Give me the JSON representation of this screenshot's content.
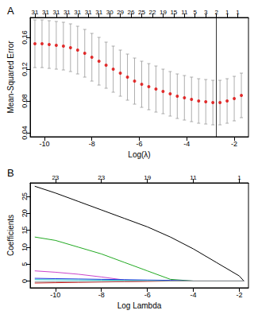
{
  "chart_data": [
    {
      "type": "scatter",
      "title": "A",
      "xlabel": "Log(λ)",
      "ylabel": "Mean-Squared Error",
      "color": "#e00000",
      "x": [
        -10.4,
        -10.1,
        -9.8,
        -9.5,
        -9.2,
        -8.9,
        -8.6,
        -8.3,
        -8.0,
        -7.7,
        -7.4,
        -7.1,
        -6.8,
        -6.5,
        -6.2,
        -5.9,
        -5.6,
        -5.3,
        -5.0,
        -4.7,
        -4.4,
        -4.1,
        -3.8,
        -3.5,
        -3.2,
        -2.9,
        -2.6,
        -2.3,
        -2.0,
        -1.7
      ],
      "values": [
        0.152,
        0.152,
        0.151,
        0.15,
        0.149,
        0.147,
        0.144,
        0.14,
        0.135,
        0.13,
        0.125,
        0.12,
        0.115,
        0.11,
        0.105,
        0.101,
        0.098,
        0.095,
        0.092,
        0.089,
        0.086,
        0.084,
        0.082,
        0.08,
        0.079,
        0.078,
        0.078,
        0.08,
        0.083,
        0.087
      ],
      "error": [
        0.03,
        0.03,
        0.03,
        0.03,
        0.03,
        0.03,
        0.03,
        0.03,
        0.03,
        0.03,
        0.029,
        0.029,
        0.029,
        0.029,
        0.029,
        0.029,
        0.029,
        0.029,
        0.028,
        0.028,
        0.028,
        0.028,
        0.028,
        0.028,
        0.028,
        0.028,
        0.028,
        0.028,
        0.028,
        0.028
      ],
      "xlim": [
        -10.6,
        -1.4
      ],
      "ylim": [
        0.035,
        0.185
      ],
      "xticks": [
        -10,
        -8,
        -6,
        -4,
        -2
      ],
      "yticks": [
        0.04,
        0.08,
        0.12,
        0.16
      ],
      "top_ticks": [
        {
          "value": -10.4,
          "label": "31"
        },
        {
          "value": -9.95,
          "label": "31"
        },
        {
          "value": -9.5,
          "label": "31"
        },
        {
          "value": -9.05,
          "label": "31"
        },
        {
          "value": -8.6,
          "label": "31"
        },
        {
          "value": -8.15,
          "label": "31"
        },
        {
          "value": -7.7,
          "label": "31"
        },
        {
          "value": -7.25,
          "label": "30"
        },
        {
          "value": -6.8,
          "label": "29"
        },
        {
          "value": -6.35,
          "label": "26"
        },
        {
          "value": -5.9,
          "label": "25"
        },
        {
          "value": -5.45,
          "label": "22"
        },
        {
          "value": -5.0,
          "label": "19"
        },
        {
          "value": -4.55,
          "label": "15"
        },
        {
          "value": -4.1,
          "label": "11"
        },
        {
          "value": -3.65,
          "label": "5"
        },
        {
          "value": -3.2,
          "label": "3"
        },
        {
          "value": -2.75,
          "label": "2"
        },
        {
          "value": -2.3,
          "label": "1"
        },
        {
          "value": -1.85,
          "label": "1"
        }
      ],
      "vlines": [
        -2.77
      ]
    },
    {
      "type": "line",
      "title": "B",
      "xlabel": "Log Lambda",
      "ylabel": "Coefficients",
      "x": [
        -10.9,
        -10,
        -9,
        -8,
        -7,
        -6,
        -5,
        -4,
        -3,
        -2,
        -1.8
      ],
      "series": [
        {
          "color": "#000000",
          "values": [
            28,
            26,
            23.5,
            21,
            18.5,
            16,
            13,
            9.5,
            5.5,
            1.5,
            0
          ]
        },
        {
          "color": "#22aa22",
          "values": [
            13,
            12,
            10,
            8,
            5.5,
            3,
            0.5,
            0,
            0,
            0,
            0
          ]
        },
        {
          "color": "#cc44cc",
          "values": [
            3,
            2.6,
            2,
            1.2,
            0.3,
            0,
            0,
            0,
            0,
            0,
            0
          ]
        },
        {
          "color": "#2233dd",
          "values": [
            0.8,
            0.7,
            0.6,
            0.5,
            0.4,
            0.3,
            0.2,
            0,
            0,
            0,
            0
          ]
        },
        {
          "color": "#dd2222",
          "values": [
            -0.6,
            -0.5,
            -0.4,
            -0.3,
            -0.2,
            -0.1,
            0,
            0,
            0,
            0,
            0
          ]
        },
        {
          "color": "#22cccc",
          "values": [
            0.4,
            0.35,
            0.3,
            0.25,
            0.2,
            0.1,
            0,
            0,
            0,
            0,
            0
          ]
        },
        {
          "color": "#888888",
          "values": [
            -0.3,
            -0.25,
            -0.2,
            -0.15,
            -0.1,
            0,
            0,
            0,
            0,
            0,
            0
          ]
        }
      ],
      "xlim": [
        -11.1,
        -1.6
      ],
      "ylim": [
        -2,
        29
      ],
      "xticks": [
        -10,
        -8,
        -6,
        -4,
        -2
      ],
      "yticks": [
        0,
        5,
        10,
        15,
        20,
        25
      ],
      "top_ticks": [
        {
          "value": -10,
          "label": "23"
        },
        {
          "value": -8,
          "label": "23"
        },
        {
          "value": -6,
          "label": "19"
        },
        {
          "value": -4,
          "label": "11"
        },
        {
          "value": -2,
          "label": "1"
        }
      ]
    }
  ]
}
